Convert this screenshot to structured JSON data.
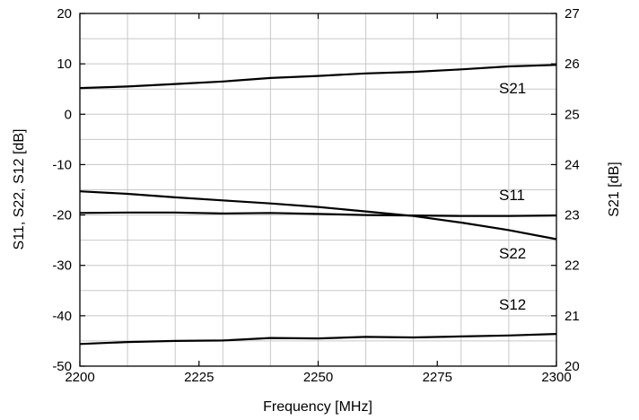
{
  "chart_data": {
    "type": "line",
    "xlabel": "Frequency [MHz]",
    "ylabel_left": "S11, S22, S12 [dB]",
    "ylabel_right": "S21 [dB]",
    "xlim": [
      2200,
      2300
    ],
    "ylim_left": [
      -50,
      20
    ],
    "ylim_right": [
      20,
      27
    ],
    "x_ticks": [
      2200,
      2225,
      2250,
      2275,
      2300
    ],
    "y_left_ticks": [
      20,
      10,
      0,
      -10,
      -20,
      -30,
      -40,
      -50
    ],
    "y_right_ticks": [
      27,
      26,
      25,
      24,
      23,
      22,
      21,
      20
    ],
    "grid": true,
    "x": [
      2200,
      2210,
      2220,
      2230,
      2240,
      2250,
      2260,
      2270,
      2280,
      2290,
      2300
    ],
    "series": [
      {
        "name": "S21",
        "axis": "right",
        "values": [
          25.52,
          25.55,
          25.6,
          25.65,
          25.72,
          25.76,
          25.81,
          25.84,
          25.89,
          25.95,
          25.98
        ]
      },
      {
        "name": "S11",
        "axis": "left",
        "values": [
          -19.6,
          -19.5,
          -19.5,
          -19.7,
          -19.6,
          -19.8,
          -20.0,
          -20.1,
          -20.2,
          -20.2,
          -20.1
        ]
      },
      {
        "name": "S22",
        "axis": "left",
        "values": [
          -15.3,
          -15.8,
          -16.5,
          -17.1,
          -17.7,
          -18.4,
          -19.3,
          -20.2,
          -21.5,
          -23.0,
          -24.8
        ]
      },
      {
        "name": "S12",
        "axis": "left",
        "values": [
          -45.6,
          -45.2,
          -45.0,
          -44.9,
          -44.4,
          -44.5,
          -44.2,
          -44.3,
          -44.1,
          -43.9,
          -43.6
        ]
      }
    ]
  }
}
